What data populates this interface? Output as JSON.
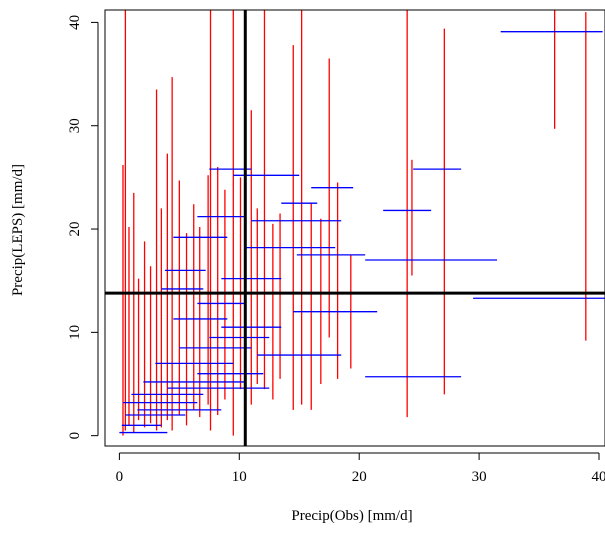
{
  "chart_data": {
    "type": "scatter",
    "title": "",
    "xlabel": "Precip(Obs)  [mm/d]",
    "ylabel": "Precip(LEPS)  [mm/d]",
    "xlim": [
      -1.2,
      40.5
    ],
    "ylim": [
      -1.0,
      41.2
    ],
    "x_ticks": [
      0,
      10,
      20,
      30,
      40
    ],
    "y_ticks": [
      0,
      10,
      20,
      30,
      40
    ],
    "x_tick_labels": [
      "0",
      "10",
      "20",
      "30",
      "40"
    ],
    "y_tick_labels": [
      "0",
      "10",
      "20",
      "30",
      "40"
    ],
    "grid": false,
    "colors": {
      "vertical_ranges": "#ff0000",
      "horizontal_ranges": "#0000ff",
      "reference_lines": "#000000"
    },
    "reference_lines": {
      "vertical_x": 10.5,
      "horizontal_y": 13.8
    },
    "vertical_ranges": [
      {
        "x": 0.3,
        "y0": 0.0,
        "y1": 26.2
      },
      {
        "x": 0.5,
        "y0": 0.5,
        "y1": 41.2
      },
      {
        "x": 0.8,
        "y0": 1.0,
        "y1": 20.2
      },
      {
        "x": 1.2,
        "y0": 0.3,
        "y1": 23.5
      },
      {
        "x": 1.6,
        "y0": 1.5,
        "y1": 15.2
      },
      {
        "x": 2.1,
        "y0": 0.8,
        "y1": 18.8
      },
      {
        "x": 2.6,
        "y0": 1.2,
        "y1": 16.4
      },
      {
        "x": 3.1,
        "y0": 0.5,
        "y1": 33.5
      },
      {
        "x": 3.5,
        "y0": 0.8,
        "y1": 22.0
      },
      {
        "x": 4.0,
        "y0": 1.5,
        "y1": 27.3
      },
      {
        "x": 4.4,
        "y0": 0.5,
        "y1": 34.7
      },
      {
        "x": 5.0,
        "y0": 2.0,
        "y1": 24.7
      },
      {
        "x": 5.6,
        "y0": 1.0,
        "y1": 19.6
      },
      {
        "x": 6.2,
        "y0": 2.5,
        "y1": 22.4
      },
      {
        "x": 6.7,
        "y0": 1.8,
        "y1": 20.2
      },
      {
        "x": 7.4,
        "y0": 3.0,
        "y1": 25.2
      },
      {
        "x": 7.6,
        "y0": 0.5,
        "y1": 41.2
      },
      {
        "x": 8.2,
        "y0": 2.0,
        "y1": 26.0
      },
      {
        "x": 8.8,
        "y0": 3.5,
        "y1": 23.8
      },
      {
        "x": 9.5,
        "y0": 0.0,
        "y1": 41.2
      },
      {
        "x": 10.1,
        "y0": 4.5,
        "y1": 25.0
      },
      {
        "x": 11.0,
        "y0": 3.0,
        "y1": 31.5
      },
      {
        "x": 11.5,
        "y0": 5.0,
        "y1": 22.0
      },
      {
        "x": 12.1,
        "y0": 4.5,
        "y1": 41.2
      },
      {
        "x": 12.8,
        "y0": 3.5,
        "y1": 20.5
      },
      {
        "x": 13.4,
        "y0": 5.5,
        "y1": 21.5
      },
      {
        "x": 14.5,
        "y0": 2.5,
        "y1": 37.8
      },
      {
        "x": 15.2,
        "y0": 3.0,
        "y1": 41.2
      },
      {
        "x": 16.0,
        "y0": 2.5,
        "y1": 22.5
      },
      {
        "x": 16.8,
        "y0": 5.0,
        "y1": 21.0
      },
      {
        "x": 17.5,
        "y0": 9.5,
        "y1": 36.5
      },
      {
        "x": 18.2,
        "y0": 5.5,
        "y1": 24.5
      },
      {
        "x": 19.3,
        "y0": 6.5,
        "y1": 17.5
      },
      {
        "x": 24.0,
        "y0": 1.8,
        "y1": 41.2
      },
      {
        "x": 24.4,
        "y0": 15.5,
        "y1": 26.7
      },
      {
        "x": 27.1,
        "y0": 4.0,
        "y1": 39.4
      },
      {
        "x": 36.3,
        "y0": 29.7,
        "y1": 41.2
      },
      {
        "x": 38.9,
        "y0": 9.2,
        "y1": 41.0
      }
    ],
    "horizontal_ranges": [
      {
        "y": 0.3,
        "x0": 0.0,
        "x1": 4.0
      },
      {
        "y": 1.0,
        "x0": 0.2,
        "x1": 3.5
      },
      {
        "y": 2.0,
        "x0": 0.5,
        "x1": 5.5
      },
      {
        "y": 2.5,
        "x0": 1.5,
        "x1": 8.5
      },
      {
        "y": 3.2,
        "x0": 0.3,
        "x1": 6.5
      },
      {
        "y": 4.0,
        "x0": 1.0,
        "x1": 7.0
      },
      {
        "y": 4.6,
        "x0": 4.0,
        "x1": 12.5
      },
      {
        "y": 5.2,
        "x0": 2.0,
        "x1": 10.5
      },
      {
        "y": 5.7,
        "x0": 20.5,
        "x1": 28.5
      },
      {
        "y": 6.0,
        "x0": 6.5,
        "x1": 12.0
      },
      {
        "y": 7.0,
        "x0": 3.0,
        "x1": 9.5
      },
      {
        "y": 7.8,
        "x0": 11.5,
        "x1": 18.5
      },
      {
        "y": 8.5,
        "x0": 5.0,
        "x1": 11.0
      },
      {
        "y": 9.5,
        "x0": 7.5,
        "x1": 12.5
      },
      {
        "y": 10.5,
        "x0": 8.5,
        "x1": 13.5
      },
      {
        "y": 11.3,
        "x0": 4.5,
        "x1": 9.0
      },
      {
        "y": 12.0,
        "x0": 14.5,
        "x1": 21.5
      },
      {
        "y": 12.8,
        "x0": 6.5,
        "x1": 10.5
      },
      {
        "y": 13.3,
        "x0": 29.5,
        "x1": 40.5
      },
      {
        "y": 14.2,
        "x0": 3.5,
        "x1": 7.0
      },
      {
        "y": 15.2,
        "x0": 8.5,
        "x1": 13.5
      },
      {
        "y": 16.0,
        "x0": 3.8,
        "x1": 7.2
      },
      {
        "y": 17.0,
        "x0": 20.5,
        "x1": 31.5
      },
      {
        "y": 17.5,
        "x0": 14.8,
        "x1": 20.5
      },
      {
        "y": 18.2,
        "x0": 10.5,
        "x1": 18.0
      },
      {
        "y": 19.2,
        "x0": 4.5,
        "x1": 9.0
      },
      {
        "y": 20.8,
        "x0": 11.0,
        "x1": 18.5
      },
      {
        "y": 21.2,
        "x0": 6.5,
        "x1": 10.5
      },
      {
        "y": 21.8,
        "x0": 22.0,
        "x1": 26.0
      },
      {
        "y": 22.5,
        "x0": 13.5,
        "x1": 16.5
      },
      {
        "y": 24.0,
        "x0": 16.0,
        "x1": 19.5
      },
      {
        "y": 25.2,
        "x0": 9.5,
        "x1": 15.0
      },
      {
        "y": 25.8,
        "x0": 7.5,
        "x1": 11.0
      },
      {
        "y": 25.8,
        "x0": 24.5,
        "x1": 28.5
      },
      {
        "y": 39.1,
        "x0": 31.8,
        "x1": 40.3
      }
    ]
  }
}
